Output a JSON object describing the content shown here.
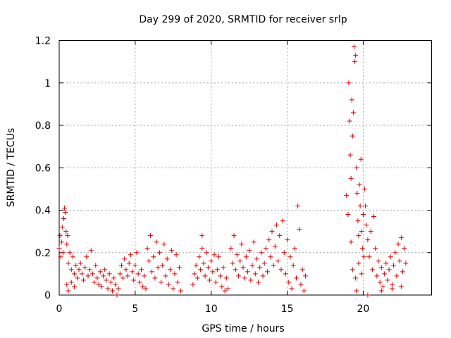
{
  "chart_data": {
    "type": "scatter",
    "title": "Day 299 of 2020, SRMTID for receiver srlp",
    "xlabel": "GPS time / hours",
    "ylabel": "SRMTID / TECUs",
    "xlim": [
      0,
      24.5
    ],
    "ylim": [
      0,
      1.2
    ],
    "xticks": [
      0,
      5,
      10,
      15,
      20
    ],
    "xtick_labels": [
      "0",
      "5",
      "10",
      "15",
      "20"
    ],
    "yticks": [
      0,
      0.2,
      0.4,
      0.6,
      0.8,
      1.0,
      1.2
    ],
    "ytick_labels": [
      "0",
      "0.2",
      "0.4",
      "0.6",
      "0.8",
      "1",
      "1.2"
    ],
    "grid": true,
    "marker": "plus",
    "marker_color": "#e00000",
    "series": [
      {
        "name": "srlp",
        "points": [
          [
            0.0,
            0.22
          ],
          [
            0.05,
            0.28
          ],
          [
            0.1,
            0.18
          ],
          [
            0.15,
            0.25
          ],
          [
            0.2,
            0.32
          ],
          [
            0.25,
            0.2
          ],
          [
            0.3,
            0.36
          ],
          [
            0.35,
            0.41
          ],
          [
            0.4,
            0.39
          ],
          [
            0.45,
            0.3
          ],
          [
            0.5,
            0.24
          ],
          [
            0.55,
            0.28
          ],
          [
            0.6,
            0.15
          ],
          [
            0.7,
            0.2
          ],
          [
            0.8,
            0.12
          ],
          [
            0.9,
            0.18
          ],
          [
            1.0,
            0.1
          ],
          [
            1.1,
            0.14
          ],
          [
            1.2,
            0.08
          ],
          [
            1.3,
            0.12
          ],
          [
            0.5,
            0.05
          ],
          [
            0.6,
            0.02
          ],
          [
            0.8,
            0.06
          ],
          [
            1.0,
            0.04
          ],
          [
            1.4,
            0.15
          ],
          [
            1.5,
            0.1
          ],
          [
            1.6,
            0.07
          ],
          [
            1.7,
            0.13
          ],
          [
            1.8,
            0.18
          ],
          [
            1.9,
            0.09
          ],
          [
            2.0,
            0.12
          ],
          [
            2.1,
            0.21
          ],
          [
            2.2,
            0.1
          ],
          [
            2.3,
            0.06
          ],
          [
            2.4,
            0.14
          ],
          [
            2.5,
            0.08
          ],
          [
            2.6,
            0.05
          ],
          [
            2.7,
            0.11
          ],
          [
            2.8,
            0.04
          ],
          [
            2.9,
            0.09
          ],
          [
            3.0,
            0.12
          ],
          [
            3.1,
            0.07
          ],
          [
            3.2,
            0.03
          ],
          [
            3.3,
            0.1
          ],
          [
            3.4,
            0.06
          ],
          [
            3.5,
            0.02
          ],
          [
            3.6,
            0.08
          ],
          [
            3.7,
            0.05
          ],
          [
            3.8,
            0.0
          ],
          [
            3.9,
            0.03
          ],
          [
            4.0,
            0.1
          ],
          [
            4.1,
            0.14
          ],
          [
            4.2,
            0.08
          ],
          [
            4.3,
            0.17
          ],
          [
            4.4,
            0.12
          ],
          [
            4.5,
            0.09
          ],
          [
            4.6,
            0.15
          ],
          [
            4.7,
            0.19
          ],
          [
            4.8,
            0.11
          ],
          [
            4.9,
            0.07
          ],
          [
            5.0,
            0.14
          ],
          [
            5.1,
            0.2
          ],
          [
            5.2,
            0.1
          ],
          [
            5.3,
            0.06
          ],
          [
            5.4,
            0.12
          ],
          [
            5.5,
            0.04
          ],
          [
            5.6,
            0.09
          ],
          [
            5.7,
            0.03
          ],
          [
            5.8,
            0.22
          ],
          [
            5.9,
            0.16
          ],
          [
            6.0,
            0.28
          ],
          [
            6.1,
            0.11
          ],
          [
            6.2,
            0.18
          ],
          [
            6.3,
            0.08
          ],
          [
            6.4,
            0.25
          ],
          [
            6.5,
            0.13
          ],
          [
            6.6,
            0.2
          ],
          [
            6.7,
            0.06
          ],
          [
            6.8,
            0.14
          ],
          [
            6.9,
            0.24
          ],
          [
            7.0,
            0.09
          ],
          [
            7.1,
            0.17
          ],
          [
            7.2,
            0.05
          ],
          [
            7.3,
            0.12
          ],
          [
            7.4,
            0.21
          ],
          [
            7.5,
            0.03
          ],
          [
            7.6,
            0.1
          ],
          [
            7.7,
            0.19
          ],
          [
            7.8,
            0.06
          ],
          [
            7.9,
            0.13
          ],
          [
            8.0,
            0.02
          ],
          [
            8.8,
            0.05
          ],
          [
            8.9,
            0.1
          ],
          [
            9.0,
            0.14
          ],
          [
            9.1,
            0.08
          ],
          [
            9.2,
            0.18
          ],
          [
            9.3,
            0.12
          ],
          [
            9.4,
            0.22
          ],
          [
            9.5,
            0.15
          ],
          [
            9.6,
            0.09
          ],
          [
            9.7,
            0.2
          ],
          [
            9.8,
            0.13
          ],
          [
            9.9,
            0.07
          ],
          [
            10.0,
            0.16
          ],
          [
            10.1,
            0.11
          ],
          [
            10.2,
            0.19
          ],
          [
            10.3,
            0.06
          ],
          [
            10.4,
            0.12
          ],
          [
            10.5,
            0.18
          ],
          [
            10.6,
            0.09
          ],
          [
            10.7,
            0.04
          ],
          [
            10.8,
            0.13
          ],
          [
            10.9,
            0.02
          ],
          [
            11.0,
            0.08
          ],
          [
            11.1,
            0.03
          ],
          [
            9.4,
            0.28
          ],
          [
            11.3,
            0.22
          ],
          [
            11.4,
            0.15
          ],
          [
            11.5,
            0.28
          ],
          [
            11.6,
            0.12
          ],
          [
            11.7,
            0.19
          ],
          [
            11.8,
            0.09
          ],
          [
            11.9,
            0.16
          ],
          [
            12.0,
            0.24
          ],
          [
            12.1,
            0.13
          ],
          [
            12.2,
            0.08
          ],
          [
            12.3,
            0.18
          ],
          [
            12.4,
            0.11
          ],
          [
            12.5,
            0.21
          ],
          [
            12.6,
            0.07
          ],
          [
            12.7,
            0.14
          ],
          [
            12.8,
            0.25
          ],
          [
            12.9,
            0.1
          ],
          [
            13.0,
            0.17
          ],
          [
            13.1,
            0.06
          ],
          [
            13.2,
            0.13
          ],
          [
            13.3,
            0.2
          ],
          [
            13.4,
            0.09
          ],
          [
            13.5,
            0.15
          ],
          [
            13.6,
            0.22
          ],
          [
            13.7,
            0.11
          ],
          [
            13.8,
            0.26
          ],
          [
            13.9,
            0.18
          ],
          [
            14.0,
            0.3
          ],
          [
            14.1,
            0.14
          ],
          [
            14.2,
            0.23
          ],
          [
            14.3,
            0.33
          ],
          [
            14.4,
            0.16
          ],
          [
            14.5,
            0.28
          ],
          [
            14.6,
            0.12
          ],
          [
            14.7,
            0.35
          ],
          [
            14.8,
            0.2
          ],
          [
            14.9,
            0.1
          ],
          [
            15.0,
            0.26
          ],
          [
            15.1,
            0.06
          ],
          [
            15.2,
            0.18
          ],
          [
            15.3,
            0.03
          ],
          [
            15.4,
            0.14
          ],
          [
            15.5,
            0.22
          ],
          [
            15.6,
            0.08
          ],
          [
            15.7,
            0.42
          ],
          [
            15.8,
            0.31
          ],
          [
            15.9,
            0.05
          ],
          [
            16.0,
            0.12
          ],
          [
            16.1,
            0.02
          ],
          [
            16.2,
            0.09
          ],
          [
            18.9,
            0.47
          ],
          [
            19.0,
            0.38
          ],
          [
            19.05,
            1.0
          ],
          [
            19.1,
            0.82
          ],
          [
            19.15,
            0.66
          ],
          [
            19.2,
            0.55
          ],
          [
            19.25,
            0.92
          ],
          [
            19.3,
            0.75
          ],
          [
            19.35,
            0.86
          ],
          [
            19.4,
            1.17
          ],
          [
            19.45,
            1.1
          ],
          [
            19.5,
            1.13
          ],
          [
            19.55,
            0.6
          ],
          [
            19.6,
            0.48
          ],
          [
            19.65,
            0.35
          ],
          [
            19.7,
            0.28
          ],
          [
            19.75,
            0.52
          ],
          [
            19.8,
            0.42
          ],
          [
            19.85,
            0.64
          ],
          [
            19.9,
            0.3
          ],
          [
            19.95,
            0.22
          ],
          [
            20.0,
            0.38
          ],
          [
            20.05,
            0.18
          ],
          [
            19.2,
            0.25
          ],
          [
            19.3,
            0.12
          ],
          [
            19.5,
            0.08
          ],
          [
            19.7,
            0.15
          ],
          [
            19.9,
            0.1
          ],
          [
            19.55,
            0.02
          ],
          [
            20.1,
            0.5
          ],
          [
            20.15,
            0.42
          ],
          [
            20.2,
            0.33
          ],
          [
            20.3,
            0.26
          ],
          [
            20.4,
            0.18
          ],
          [
            20.5,
            0.3
          ],
          [
            20.6,
            0.12
          ],
          [
            20.7,
            0.37
          ],
          [
            20.8,
            0.22
          ],
          [
            20.9,
            0.09
          ],
          [
            21.0,
            0.16
          ],
          [
            21.1,
            0.06
          ],
          [
            21.2,
            0.13
          ],
          [
            21.3,
            0.04
          ],
          [
            21.4,
            0.1
          ],
          [
            21.5,
            0.15
          ],
          [
            21.6,
            0.07
          ],
          [
            21.7,
            0.12
          ],
          [
            21.8,
            0.18
          ],
          [
            21.9,
            0.05
          ],
          [
            22.0,
            0.14
          ],
          [
            22.1,
            0.2
          ],
          [
            22.2,
            0.09
          ],
          [
            22.3,
            0.24
          ],
          [
            22.4,
            0.16
          ],
          [
            22.5,
            0.27
          ],
          [
            22.6,
            0.11
          ],
          [
            22.7,
            0.22
          ],
          [
            22.8,
            0.15
          ],
          [
            20.3,
            0.0
          ],
          [
            21.2,
            0.02
          ],
          [
            21.9,
            0.03
          ],
          [
            22.5,
            0.04
          ]
        ]
      }
    ]
  }
}
